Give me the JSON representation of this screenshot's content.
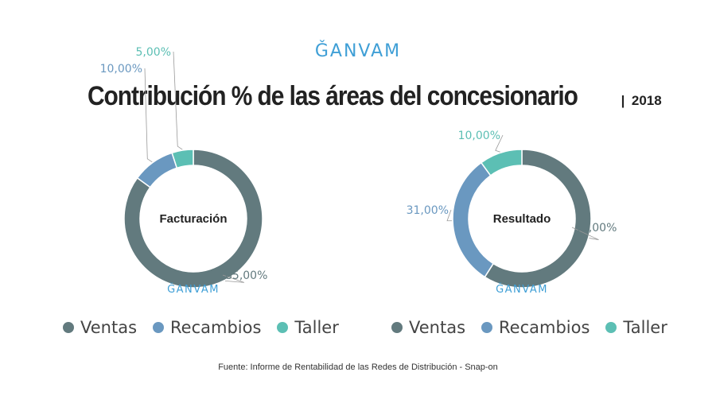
{
  "logo_text": "ǦANVAM",
  "title": "Contribución % de las áreas del concesionario",
  "year_separator": "|",
  "year": "2018",
  "source": "Fuente: Informe de Rentabilidad de las Redes de Distribución - Snap-on",
  "colors": {
    "Ventas": "#627a7e",
    "Recambios": "#6a98c0",
    "Taller": "#5cbfb4"
  },
  "chart_data": [
    {
      "type": "pie",
      "title": "Facturación",
      "categories": [
        "Ventas",
        "Recambios",
        "Taller"
      ],
      "values": [
        85.0,
        10.0,
        5.0
      ],
      "labels": [
        "85,00%",
        "10,00%",
        "5,00%"
      ],
      "legend": [
        "Ventas",
        "Recambios",
        "Taller"
      ],
      "legend_position": "bottom"
    },
    {
      "type": "pie",
      "title": "Resultado",
      "categories": [
        "Ventas",
        "Recambios",
        "Taller"
      ],
      "values": [
        59.0,
        31.0,
        10.0
      ],
      "labels": [
        "59,00%",
        "31,00%",
        "10,00%"
      ],
      "legend": [
        "Ventas",
        "Recambios",
        "Taller"
      ],
      "legend_position": "bottom"
    }
  ]
}
